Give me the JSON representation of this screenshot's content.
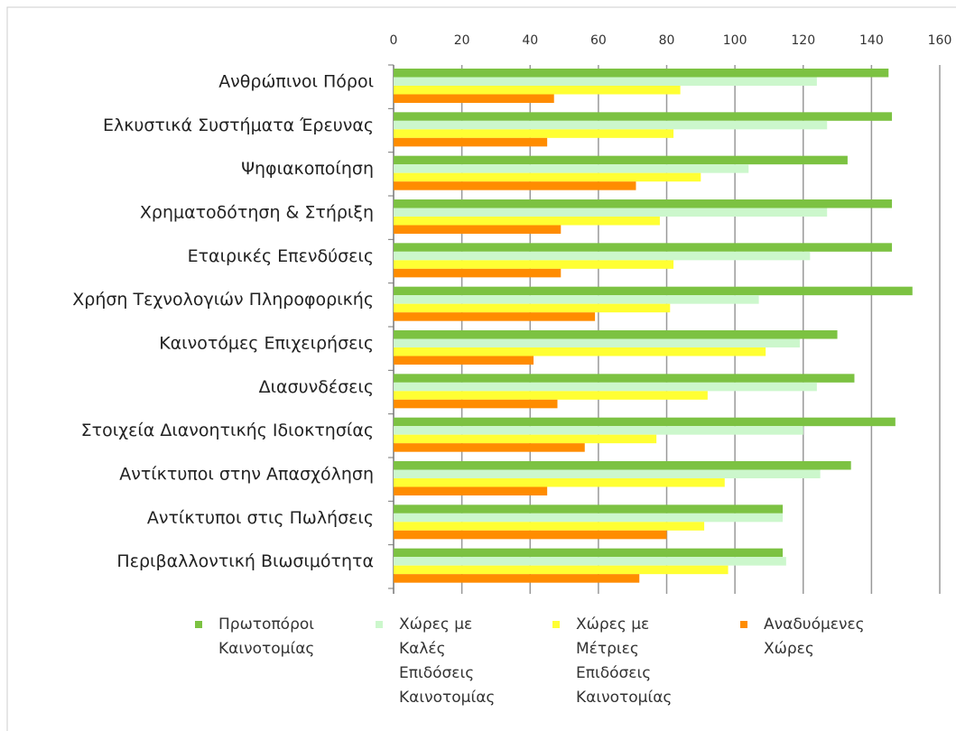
{
  "chart_data": {
    "type": "bar",
    "orientation": "horizontal",
    "categories": [
      "Ανθρώπινοι Πόροι",
      "Ελκυστικά Συστήματα Έρευνας",
      "Ψηφιακοποίηση",
      "Χρηματοδότηση & Στήριξη",
      "Εταιρικές Επενδύσεις",
      "Χρήση Τεχνολογιών Πληροφορικής",
      "Καινοτόμες Επιχειρήσεις",
      "Διασυνδέσεις",
      "Στοιχεία Διανοητικής Ιδιοκτησίας",
      "Αντίκτυποι στην Απασχόληση",
      "Αντίκτυποι στις Πωλήσεις",
      "Περιβαλλοντική Βιωσιμότητα"
    ],
    "series": [
      {
        "name": "Πρωτοπόροι Καινοτομίας",
        "color": "#7cc242",
        "values": [
          145,
          146,
          133,
          146,
          146,
          152,
          130,
          135,
          147,
          134,
          114,
          114
        ]
      },
      {
        "name": "Χώρες με Καλές Επιδόσεις Καινοτομίας",
        "color": "#ccf7cc",
        "values": [
          124,
          127,
          104,
          127,
          122,
          107,
          119,
          124,
          120,
          125,
          114,
          115
        ]
      },
      {
        "name": "Χώρες με Μέτριες Επιδόσεις Καινοτομίας",
        "color": "#ffff33",
        "values": [
          84,
          82,
          90,
          78,
          82,
          81,
          109,
          92,
          77,
          97,
          91,
          98
        ]
      },
      {
        "name": "Αναδυόμενες Χώρες",
        "color": "#ff8c00",
        "values": [
          47,
          45,
          71,
          49,
          49,
          59,
          41,
          48,
          56,
          45,
          80,
          72
        ]
      }
    ],
    "xlim": [
      0,
      160
    ],
    "xticks": [
      0,
      20,
      40,
      60,
      80,
      100,
      120,
      140,
      160
    ],
    "grid": true
  }
}
